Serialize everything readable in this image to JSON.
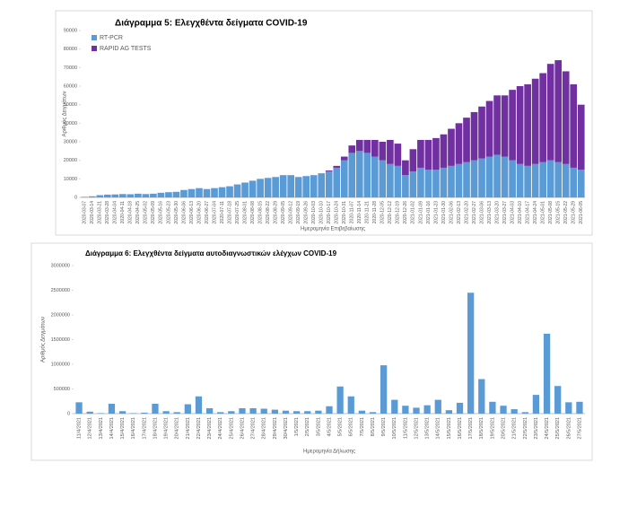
{
  "chart_data": [
    {
      "type": "stacked_bar",
      "title": "Διάγραμμα 5: Ελεγχθέντα δείγματα COVID-19",
      "xlabel": "Ημερομηνία Επιβεβαίωσης",
      "ylabel": "Αριθμός Δειγμάτων",
      "categories": [
        "2020-03-07",
        "2020-03-14",
        "2020-03-21",
        "2020-03-28",
        "2020-04-04",
        "2020-04-11",
        "2020-04-18",
        "2020-04-25",
        "2020-05-02",
        "2020-05-09",
        "2020-05-16",
        "2020-05-23",
        "2020-05-30",
        "2020-06-06",
        "2020-06-13",
        "2020-06-20",
        "2020-06-27",
        "2020-07-04",
        "2020-07-11",
        "2020-07-18",
        "2020-07-25",
        "2020-08-01",
        "2020-08-08",
        "2020-08-15",
        "2020-08-22",
        "2020-08-29",
        "2020-09-05",
        "2020-09-12",
        "2020-09-19",
        "2020-09-26",
        "2020-10-03",
        "2020-10-10",
        "2020-10-17",
        "2020-10-24",
        "2020-10-31",
        "2020-11-07",
        "2020-11-14",
        "2020-11-21",
        "2020-11-28",
        "2020-12-05",
        "2020-12-12",
        "2020-12-19",
        "2020-12-26",
        "2021-01-02",
        "2021-01-09",
        "2021-01-16",
        "2021-01-23",
        "2021-01-30",
        "2021-02-06",
        "2021-02-13",
        "2021-02-20",
        "2021-02-27",
        "2021-03-06",
        "2021-03-13",
        "2021-03-20",
        "2021-03-27",
        "2021-04-03",
        "2021-04-10",
        "2021-04-17",
        "2021-04-24",
        "2021-05-01",
        "2021-05-08",
        "2021-05-15",
        "2021-05-22",
        "2021-05-29",
        "2021-06-05"
      ],
      "series": [
        {
          "name": "RT-PCR",
          "color": "#5b9bd5",
          "values": [
            300,
            600,
            1200,
            1500,
            1600,
            1800,
            1700,
            2000,
            1800,
            2000,
            2500,
            2800,
            3000,
            4000,
            4500,
            5000,
            4500,
            5000,
            5500,
            6000,
            7000,
            8000,
            9000,
            10000,
            10500,
            11000,
            12000,
            12000,
            11000,
            11500,
            12000,
            13000,
            14000,
            16000,
            20000,
            24000,
            25000,
            24000,
            22000,
            20000,
            18000,
            17000,
            12000,
            14000,
            16000,
            15000,
            15000,
            16000,
            17000,
            18000,
            19000,
            20000,
            21000,
            22000,
            23000,
            22000,
            20000,
            18000,
            17000,
            18000,
            19000,
            20000,
            19000,
            18000,
            16000,
            15000
          ]
        },
        {
          "name": "RAPID AG TESTS",
          "color": "#7030a0",
          "values": [
            0,
            0,
            0,
            0,
            0,
            0,
            0,
            0,
            0,
            0,
            0,
            0,
            0,
            0,
            0,
            0,
            0,
            0,
            0,
            0,
            0,
            0,
            0,
            0,
            0,
            0,
            0,
            0,
            0,
            0,
            0,
            0,
            500,
            1000,
            2000,
            4000,
            6000,
            7000,
            9000,
            10000,
            13000,
            12000,
            8000,
            12000,
            15000,
            16000,
            17000,
            18000,
            20000,
            22000,
            24000,
            26000,
            28000,
            30000,
            32000,
            33000,
            38000,
            42000,
            44000,
            46000,
            48000,
            52000,
            55000,
            50000,
            45000,
            35000
          ]
        }
      ],
      "ylim": [
        0,
        90000
      ],
      "yticks": [
        0,
        10000,
        20000,
        30000,
        40000,
        50000,
        60000,
        70000,
        80000,
        90000
      ],
      "legend": "top-left"
    },
    {
      "type": "bar",
      "title": "Διάγραμμα 6: Ελεγχθέντα δείγματα αυτοδιαγνωστικών ελέγχων COVID-19",
      "xlabel": "Ημερομηνία Δήλωσης",
      "ylabel": "Αριθμός Δειγμάτων",
      "categories": [
        "11/4/2021",
        "12/4/2021",
        "13/4/2021",
        "14/4/2021",
        "15/4/2021",
        "16/4/2021",
        "17/4/2021",
        "18/4/2021",
        "19/4/2021",
        "20/4/2021",
        "21/4/2021",
        "22/4/2021",
        "23/4/2021",
        "24/4/2021",
        "25/4/2021",
        "26/4/2021",
        "27/4/2021",
        "28/4/2021",
        "29/4/2021",
        "30/4/2021",
        "1/5/2021",
        "2/5/2021",
        "3/5/2021",
        "4/5/2021",
        "5/5/2021",
        "6/5/2021",
        "7/5/2021",
        "8/5/2021",
        "9/5/2021",
        "10/5/2021",
        "11/5/2021",
        "12/5/2021",
        "13/5/2021",
        "14/5/2021",
        "15/5/2021",
        "16/5/2021",
        "17/5/2021",
        "18/5/2021",
        "19/5/2021",
        "20/5/2021",
        "21/5/2021",
        "22/5/2021",
        "23/5/2021",
        "24/5/2021",
        "25/5/2021",
        "26/5/2021",
        "27/5/2021"
      ],
      "values": [
        230000,
        40000,
        10000,
        200000,
        50000,
        10000,
        20000,
        200000,
        50000,
        30000,
        190000,
        350000,
        110000,
        30000,
        50000,
        110000,
        110000,
        100000,
        80000,
        60000,
        50000,
        50000,
        60000,
        150000,
        550000,
        350000,
        60000,
        30000,
        980000,
        280000,
        160000,
        120000,
        170000,
        280000,
        70000,
        220000,
        2450000,
        700000,
        240000,
        160000,
        90000,
        30000,
        380000,
        1620000,
        560000,
        230000,
        240000
      ],
      "color": "#5b9bd5",
      "ylim": [
        0,
        3000000
      ],
      "yticks": [
        0,
        500000,
        1000000,
        1500000,
        2000000,
        2500000,
        3000000
      ]
    }
  ]
}
